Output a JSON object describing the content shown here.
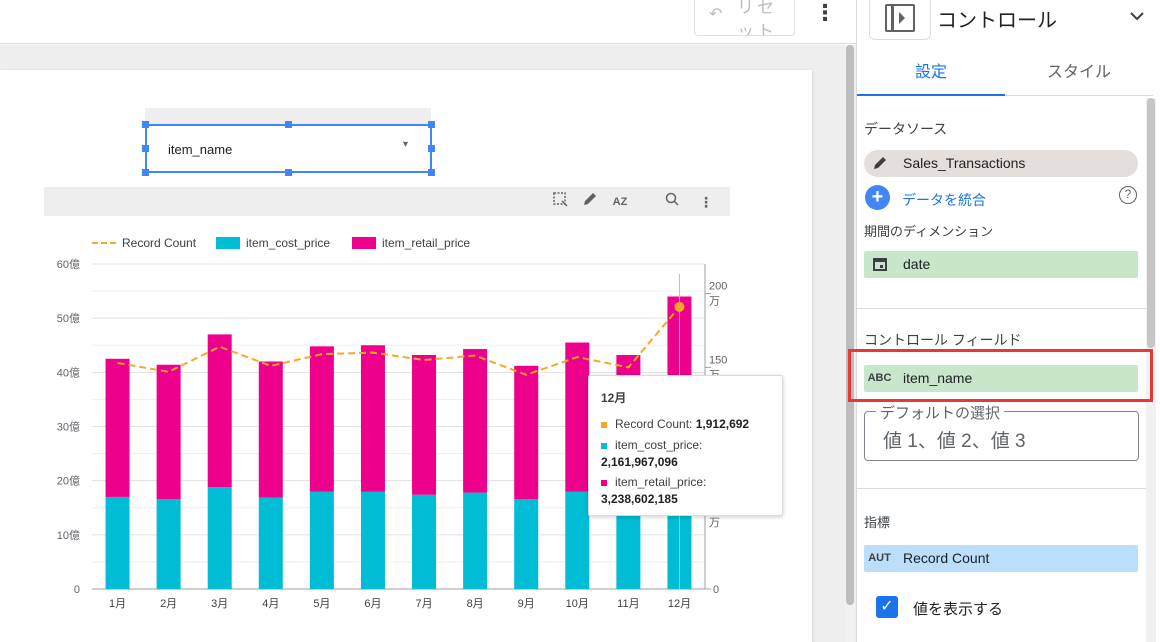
{
  "toolbar": {
    "reset_label": "リセット",
    "undo_icon": "↶",
    "more_icon": "⋮"
  },
  "control": {
    "value": "item_name",
    "arrow": "▾"
  },
  "chart_data": {
    "type": "bar",
    "stacked": true,
    "categories": [
      "1月",
      "2月",
      "3月",
      "4月",
      "5月",
      "6月",
      "7月",
      "8月",
      "9月",
      "10月",
      "11月",
      "12月"
    ],
    "series": [
      {
        "name": "item_cost_price",
        "type": "bar",
        "axis": "left",
        "color": "#00bcd4",
        "values": [
          1.7,
          1.66,
          1.88,
          1.69,
          1.8,
          1.8,
          1.74,
          1.78,
          1.66,
          1.8,
          1.75,
          2.16
        ]
      },
      {
        "name": "item_retail_price",
        "type": "bar",
        "axis": "left",
        "color": "#ec008c",
        "values": [
          2.55,
          2.48,
          2.82,
          2.51,
          2.68,
          2.7,
          2.58,
          2.65,
          2.46,
          2.75,
          2.57,
          3.24
        ]
      },
      {
        "name": "Record Count",
        "type": "line",
        "axis": "right",
        "color": "#f9a825",
        "values": [
          1.53,
          1.47,
          1.64,
          1.51,
          1.59,
          1.6,
          1.55,
          1.58,
          1.45,
          1.57,
          1.5,
          1.91
        ]
      }
    ],
    "y_left": {
      "ticks": [
        0,
        10,
        20,
        30,
        40,
        50,
        60
      ],
      "tick_labels": [
        "0",
        "10億",
        "20億",
        "30億",
        "40億",
        "50億",
        "60億"
      ],
      "range": [
        0,
        60
      ],
      "unit_divisor": 1,
      "note": "values in 十億 units (x10億)"
    },
    "y_right": {
      "ticks": [
        0,
        0.5,
        1.5,
        2.0
      ],
      "tick_labels": [
        "0",
        "50万",
        "150万",
        "200万"
      ],
      "range": [
        0,
        2.2
      ]
    },
    "legend": [
      "Record Count",
      "item_cost_price",
      "item_retail_price"
    ],
    "legend_position": "top-left",
    "highlight_index": 11
  },
  "tooltip": {
    "month": "12月",
    "rc_label": "Record Count:",
    "rc_value": "1,912,692",
    "cost_label": "item_cost_price:",
    "cost_value": "2,161,967,096",
    "retail_label": "item_retail_price:",
    "retail_value": "3,238,602,185",
    "colors": {
      "rc": "#f9a825",
      "cost": "#00bcd4",
      "retail": "#ec008c"
    }
  },
  "panel": {
    "title": "コントロール",
    "chevron": "⌄",
    "tabs": {
      "setup": "設定",
      "style": "スタイル"
    },
    "datasource_label": "データソース",
    "datasource": "Sales_Transactions",
    "blend": "データを統合",
    "help": "?",
    "date_label": "期間のディメンション",
    "date_field": "date",
    "control_field_label": "コントロール フィールド",
    "control_field_type": "ABC",
    "control_field": "item_name",
    "default_label": "デフォルトの選択",
    "default_placeholder": "値 1、値 2、値 3",
    "metric_label": "指標",
    "metric_type": "AUT",
    "metric": "Record Count",
    "show_values": "値を表示する",
    "check": "✓"
  }
}
